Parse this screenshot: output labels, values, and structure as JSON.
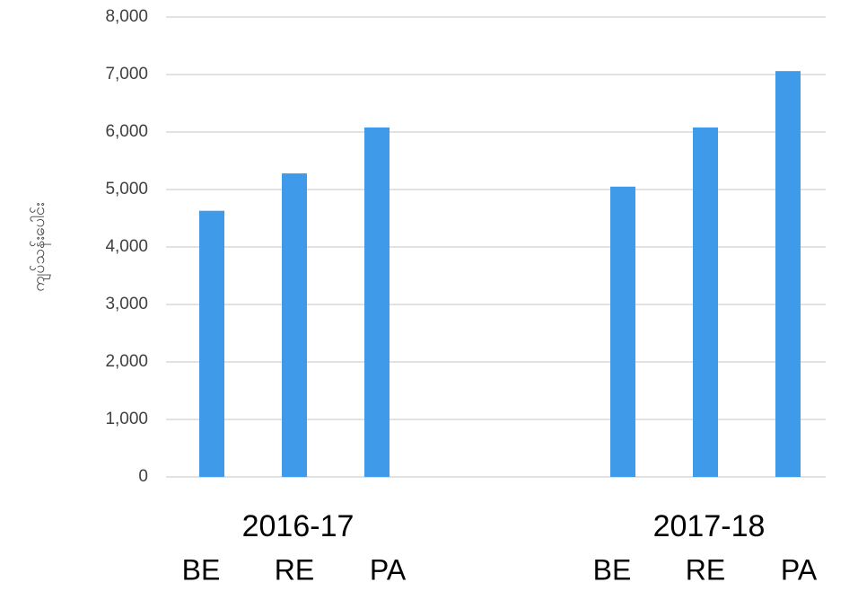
{
  "chart_data": {
    "type": "bar",
    "ylabel": "ကျပ်သန်းပေါင်း",
    "groups": [
      {
        "name": "2016-17",
        "categories": [
          "BE",
          "RE",
          "PA"
        ],
        "values": [
          4630,
          5280,
          6080
        ]
      },
      {
        "name": "2017-18",
        "categories": [
          "BE",
          "RE",
          "PA"
        ],
        "values": [
          5050,
          6080,
          7060
        ]
      }
    ],
    "color": "#3f9be9",
    "ylim": [
      0,
      8000
    ],
    "yticks": [
      0,
      {
        "value": 1000,
        "label": "1,000"
      },
      {
        "value": 2000,
        "label": "2,000"
      },
      {
        "value": 3000,
        "label": "3,000"
      },
      {
        "value": 4000,
        "label": "4,000"
      },
      {
        "value": 5000,
        "label": "5,000"
      },
      {
        "value": 6000,
        "label": "6,000"
      },
      {
        "value": 7000,
        "label": "7,000"
      },
      {
        "value": 8000,
        "label": "8,000"
      }
    ],
    "grid": true
  }
}
